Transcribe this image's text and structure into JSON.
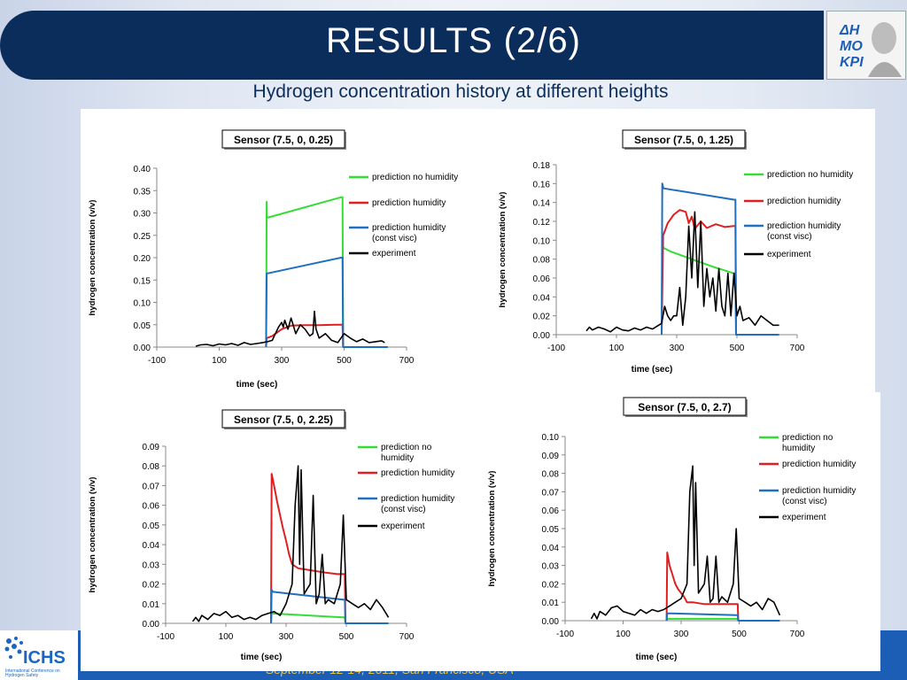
{
  "header": {
    "title": "RESULTS (2/6)",
    "subtitle": "Hydrogen concentration history at different heights"
  },
  "footer": {
    "text": "September 12-14, 2011, San Francisco, USA",
    "logo_text": "ICHS",
    "logo_sub": "International Conference on Hydrogen Safety"
  },
  "colors": {
    "no_humidity": "#33dd33",
    "humidity": "#e02020",
    "const_visc": "#1f6fbf",
    "experiment": "#000000"
  },
  "chart_data": [
    {
      "type": "line",
      "title": "Sensor (7.5, 0, 0.25)",
      "xlabel": "time (sec)",
      "ylabel": "hydrogen concentration (v/v)",
      "xlim": [
        -100,
        700
      ],
      "ylim": [
        0,
        0.4
      ],
      "xticks": [
        "-100",
        "100",
        "300",
        "500",
        "700"
      ],
      "yticks": [
        "0.00",
        "0.05",
        "0.10",
        "0.15",
        "0.20",
        "0.25",
        "0.30",
        "0.35",
        "0.40"
      ],
      "legend": [
        "prediction no humidity",
        "prediction humidity",
        "prediction humidity (const visc)",
        "experiment"
      ],
      "series": [
        {
          "name": "prediction no humidity",
          "x": [
            250,
            252,
            253,
            257,
            490,
            495,
            497
          ],
          "y": [
            0,
            0.325,
            0.29,
            0.29,
            0.335,
            0.335,
            0
          ]
        },
        {
          "name": "prediction humidity",
          "x": [
            250,
            252,
            270,
            300,
            330,
            370,
            420,
            470,
            495,
            497
          ],
          "y": [
            0,
            0.02,
            0.025,
            0.04,
            0.048,
            0.049,
            0.049,
            0.05,
            0.05,
            0
          ]
        },
        {
          "name": "prediction humidity (const visc)",
          "x": [
            250,
            252,
            256,
            490,
            495,
            497,
            640
          ],
          "y": [
            0,
            0.165,
            0.165,
            0.2,
            0.2,
            0,
            0
          ]
        },
        {
          "name": "experiment",
          "x": [
            25,
            40,
            60,
            80,
            100,
            120,
            140,
            160,
            180,
            200,
            220,
            240,
            255,
            270,
            280,
            290,
            300,
            305,
            310,
            320,
            330,
            345,
            360,
            375,
            390,
            400,
            405,
            410,
            420,
            440,
            460,
            480,
            500,
            520,
            540,
            560,
            580,
            600,
            620,
            630
          ],
          "y": [
            0.002,
            0.005,
            0.006,
            0.003,
            0.007,
            0.005,
            0.008,
            0.004,
            0.01,
            0.006,
            0.008,
            0.01,
            0.012,
            0.015,
            0.03,
            0.045,
            0.055,
            0.045,
            0.06,
            0.04,
            0.065,
            0.03,
            0.05,
            0.04,
            0.025,
            0.03,
            0.08,
            0.04,
            0.02,
            0.03,
            0.015,
            0.01,
            0.03,
            0.02,
            0.012,
            0.018,
            0.01,
            0.012,
            0.014,
            0.01
          ]
        }
      ]
    },
    {
      "type": "line",
      "title": "Sensor (7.5, 0, 1.25)",
      "xlabel": "time (sec)",
      "ylabel": "hydrogen concentration (v/v)",
      "xlim": [
        -100,
        700
      ],
      "ylim": [
        0,
        0.18
      ],
      "xticks": [
        "-100",
        "100",
        "300",
        "500",
        "700"
      ],
      "yticks": [
        "0.00",
        "0.02",
        "0.04",
        "0.06",
        "0.08",
        "0.10",
        "0.12",
        "0.14",
        "0.16",
        "0.18"
      ],
      "legend": [
        "prediction no humidity",
        "prediction humidity",
        "prediction humidity (const visc)",
        "experiment"
      ],
      "series": [
        {
          "name": "prediction no humidity",
          "x": [
            250,
            252,
            256,
            280,
            350,
            420,
            490,
            495,
            497
          ],
          "y": [
            0,
            0.098,
            0.092,
            0.088,
            0.08,
            0.072,
            0.065,
            0.065,
            0
          ]
        },
        {
          "name": "prediction humidity",
          "x": [
            250,
            255,
            270,
            290,
            310,
            330,
            340,
            350,
            360,
            380,
            400,
            430,
            460,
            490,
            495,
            497
          ],
          "y": [
            0,
            0.105,
            0.118,
            0.127,
            0.132,
            0.13,
            0.118,
            0.125,
            0.112,
            0.12,
            0.113,
            0.117,
            0.114,
            0.115,
            0.115,
            0
          ]
        },
        {
          "name": "prediction humidity (const visc)",
          "x": [
            250,
            252,
            256,
            490,
            495,
            497,
            640
          ],
          "y": [
            0,
            0.16,
            0.155,
            0.143,
            0.143,
            0,
            0
          ]
        },
        {
          "name": "experiment",
          "x": [
            0,
            10,
            20,
            40,
            60,
            80,
            100,
            120,
            140,
            160,
            180,
            200,
            220,
            240,
            250,
            260,
            270,
            280,
            290,
            300,
            310,
            320,
            330,
            340,
            350,
            360,
            370,
            380,
            390,
            400,
            410,
            420,
            430,
            440,
            450,
            460,
            470,
            480,
            490,
            500,
            510,
            520,
            540,
            560,
            580,
            600,
            620,
            640
          ],
          "y": [
            0.004,
            0.008,
            0.005,
            0.008,
            0.006,
            0.003,
            0.008,
            0.005,
            0.004,
            0.007,
            0.005,
            0.008,
            0.006,
            0.01,
            0.012,
            0.03,
            0.02,
            0.015,
            0.02,
            0.02,
            0.05,
            0.01,
            0.04,
            0.115,
            0.06,
            0.13,
            0.05,
            0.12,
            0.03,
            0.07,
            0.04,
            0.06,
            0.025,
            0.07,
            0.03,
            0.02,
            0.065,
            0.02,
            0.065,
            0.02,
            0.03,
            0.015,
            0.018,
            0.01,
            0.02,
            0.015,
            0.01,
            0.01
          ]
        }
      ]
    },
    {
      "type": "line",
      "title": "Sensor (7.5, 0, 2.25)",
      "xlabel": "time (sec)",
      "ylabel": "hydrogen concentration (v/v)",
      "xlim": [
        -100,
        700
      ],
      "ylim": [
        0,
        0.09
      ],
      "xticks": [
        "-100",
        "100",
        "300",
        "500",
        "700"
      ],
      "yticks": [
        "0.00",
        "0.01",
        "0.02",
        "0.03",
        "0.04",
        "0.05",
        "0.06",
        "0.07",
        "0.08",
        "0.09"
      ],
      "legend": [
        "prediction no humidity",
        "prediction humidity",
        "prediction humidity (const visc)",
        "experiment"
      ],
      "series": [
        {
          "name": "prediction no humidity",
          "x": [
            250,
            252,
            256,
            490,
            495,
            497
          ],
          "y": [
            0,
            0.005,
            0.005,
            0.003,
            0.003,
            0
          ]
        },
        {
          "name": "prediction humidity",
          "x": [
            250,
            252,
            260,
            270,
            280,
            290,
            300,
            310,
            320,
            340,
            380,
            420,
            470,
            495,
            497
          ],
          "y": [
            0,
            0.076,
            0.07,
            0.062,
            0.055,
            0.048,
            0.042,
            0.035,
            0.03,
            0.028,
            0.027,
            0.026,
            0.025,
            0.025,
            0
          ]
        },
        {
          "name": "prediction humidity (const visc)",
          "x": [
            250,
            252,
            256,
            490,
            495,
            497,
            640
          ],
          "y": [
            0,
            0.017,
            0.016,
            0.012,
            0.012,
            0,
            0
          ]
        },
        {
          "name": "experiment",
          "x": [
            -10,
            0,
            10,
            20,
            40,
            60,
            80,
            100,
            120,
            140,
            160,
            180,
            200,
            220,
            240,
            260,
            280,
            300,
            320,
            330,
            340,
            345,
            350,
            360,
            380,
            390,
            400,
            410,
            420,
            430,
            440,
            460,
            480,
            490,
            500,
            520,
            540,
            560,
            580,
            600,
            620,
            640
          ],
          "y": [
            0.001,
            0.003,
            0.001,
            0.004,
            0.002,
            0.005,
            0.004,
            0.006,
            0.003,
            0.004,
            0.002,
            0.003,
            0.002,
            0.004,
            0.005,
            0.006,
            0.004,
            0.01,
            0.02,
            0.06,
            0.08,
            0.03,
            0.078,
            0.015,
            0.02,
            0.065,
            0.01,
            0.015,
            0.035,
            0.01,
            0.012,
            0.01,
            0.02,
            0.055,
            0.012,
            0.01,
            0.008,
            0.01,
            0.007,
            0.012,
            0.008,
            0.003
          ]
        }
      ]
    },
    {
      "type": "line",
      "title": "Sensor (7.5, 0, 2.7)",
      "xlabel": "time (sec)",
      "ylabel": "hydrogen concentration (v/v)",
      "xlim": [
        -100,
        700
      ],
      "ylim": [
        0,
        0.1
      ],
      "xticks": [
        "-100",
        "100",
        "300",
        "500",
        "700"
      ],
      "yticks": [
        "0.00",
        "0.01",
        "0.02",
        "0.03",
        "0.04",
        "0.05",
        "0.06",
        "0.07",
        "0.08",
        "0.09",
        "0.10"
      ],
      "legend": [
        "prediction no humidity",
        "prediction humidity",
        "prediction humidity (const visc)",
        "experiment"
      ],
      "series": [
        {
          "name": "prediction no humidity",
          "x": [
            250,
            252,
            256,
            490,
            495,
            497
          ],
          "y": [
            0,
            0.001,
            0.001,
            0.001,
            0.001,
            0
          ]
        },
        {
          "name": "prediction humidity",
          "x": [
            250,
            252,
            260,
            270,
            280,
            290,
            300,
            310,
            320,
            340,
            380,
            420,
            470,
            495,
            497
          ],
          "y": [
            0,
            0.037,
            0.03,
            0.025,
            0.02,
            0.017,
            0.015,
            0.013,
            0.01,
            0.01,
            0.009,
            0.009,
            0.009,
            0.009,
            0
          ]
        },
        {
          "name": "prediction humidity (const visc)",
          "x": [
            250,
            252,
            256,
            490,
            495,
            497,
            640
          ],
          "y": [
            0,
            0.004,
            0.004,
            0.003,
            0.003,
            0,
            0
          ]
        },
        {
          "name": "experiment",
          "x": [
            -10,
            0,
            10,
            20,
            40,
            60,
            80,
            100,
            120,
            140,
            160,
            180,
            200,
            220,
            240,
            260,
            280,
            300,
            320,
            330,
            340,
            345,
            350,
            360,
            380,
            390,
            400,
            410,
            420,
            430,
            440,
            460,
            480,
            490,
            500,
            520,
            540,
            560,
            580,
            600,
            620,
            640
          ],
          "y": [
            0.001,
            0.004,
            0.001,
            0.005,
            0.003,
            0.007,
            0.008,
            0.005,
            0.004,
            0.003,
            0.006,
            0.004,
            0.006,
            0.005,
            0.006,
            0.008,
            0.01,
            0.012,
            0.02,
            0.07,
            0.084,
            0.03,
            0.075,
            0.015,
            0.02,
            0.035,
            0.01,
            0.012,
            0.035,
            0.01,
            0.013,
            0.01,
            0.02,
            0.05,
            0.012,
            0.01,
            0.008,
            0.01,
            0.006,
            0.012,
            0.01,
            0.003
          ]
        }
      ]
    }
  ]
}
